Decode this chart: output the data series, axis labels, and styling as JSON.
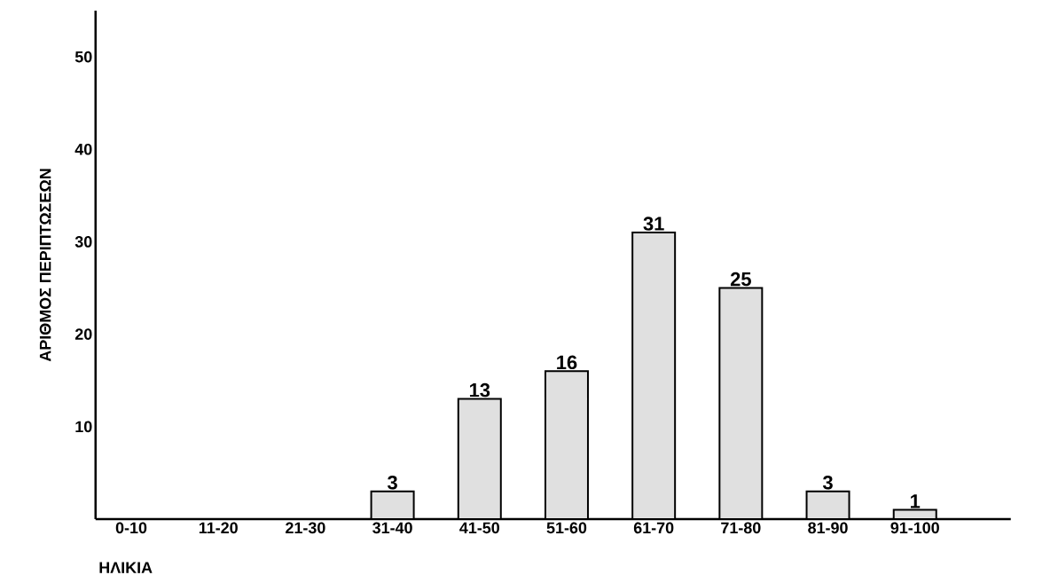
{
  "chart_data": {
    "type": "bar",
    "xlabel": "ΗΛΙΚΙΑ",
    "ylabel": "ΑΡΙΘΜΟΣ ΠΕΡΙΠΤΩΣΕΩΝ",
    "categories": [
      "0-10",
      "11-20",
      "21-30",
      "31-40",
      "41-50",
      "51-60",
      "61-70",
      "71-80",
      "81-90",
      "91-100"
    ],
    "values": [
      0,
      0,
      0,
      3,
      13,
      16,
      31,
      25,
      3,
      1
    ],
    "value_labels": [
      null,
      null,
      null,
      "3",
      "13",
      "16",
      "31",
      "25",
      "3",
      "1"
    ],
    "color": "#e0e0e0",
    "ylim": [
      0,
      55
    ],
    "yticks": [
      10,
      20,
      30,
      40,
      50
    ],
    "grid": false
  }
}
